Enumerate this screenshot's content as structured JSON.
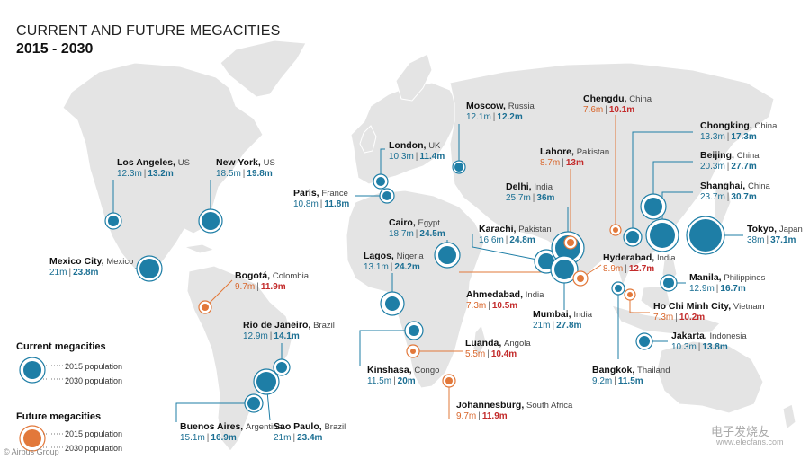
{
  "title": "CURRENT AND FUTURE MEGACITIES",
  "subtitle": "2015 - 2030",
  "legend": {
    "current_heading": "Current megacities",
    "future_heading": "Future megacities",
    "pop_2015": "2015 population",
    "pop_2030": "2030 population"
  },
  "credit": "© Airbus Group",
  "watermark": "电子发烧友",
  "watermark_url": "www.elecfans.com",
  "colors": {
    "current": "#1e7ea6",
    "future": "#e2783a",
    "value_2030_future": "#c32b2b",
    "land": "#e4e4e4"
  },
  "cities": [
    {
      "name": "Los Angeles",
      "country": "US",
      "v2015": "12.3m",
      "v2030": "13.2m",
      "type": "current"
    },
    {
      "name": "New York",
      "country": "US",
      "v2015": "18.5m",
      "v2030": "19.8m",
      "type": "current"
    },
    {
      "name": "Mexico City",
      "country": "Mexico",
      "v2015": "21m",
      "v2030": "23.8m",
      "type": "current"
    },
    {
      "name": "Bogotá",
      "country": "Colombia",
      "v2015": "9.7m",
      "v2030": "11.9m",
      "type": "future"
    },
    {
      "name": "Rio de Janeiro",
      "country": "Brazil",
      "v2015": "12.9m",
      "v2030": "14.1m",
      "type": "current"
    },
    {
      "name": "Buenos Aires",
      "country": "Argentina",
      "v2015": "15.1m",
      "v2030": "16.9m",
      "type": "current"
    },
    {
      "name": "Sao Paulo",
      "country": "Brazil",
      "v2015": "21m",
      "v2030": "23.4m",
      "type": "current"
    },
    {
      "name": "London",
      "country": "UK",
      "v2015": "10.3m",
      "v2030": "11.4m",
      "type": "current"
    },
    {
      "name": "Paris",
      "country": "France",
      "v2015": "10.8m",
      "v2030": "11.8m",
      "type": "current"
    },
    {
      "name": "Moscow",
      "country": "Russia",
      "v2015": "12.1m",
      "v2030": "12.2m",
      "type": "current"
    },
    {
      "name": "Cairo",
      "country": "Egypt",
      "v2015": "18.7m",
      "v2030": "24.5m",
      "type": "current"
    },
    {
      "name": "Lagos",
      "country": "Nigeria",
      "v2015": "13.1m",
      "v2030": "24.2m",
      "type": "current"
    },
    {
      "name": "Kinshasa",
      "country": "Congo",
      "v2015": "11.5m",
      "v2030": "20m",
      "type": "current"
    },
    {
      "name": "Luanda",
      "country": "Angola",
      "v2015": "5.5m",
      "v2030": "10.4m",
      "type": "future"
    },
    {
      "name": "Johannesburg",
      "country": "South Africa",
      "v2015": "9.7m",
      "v2030": "11.9m",
      "type": "future"
    },
    {
      "name": "Karachi",
      "country": "Pakistan",
      "v2015": "16.6m",
      "v2030": "24.8m",
      "type": "current"
    },
    {
      "name": "Delhi",
      "country": "India",
      "v2015": "25.7m",
      "v2030": "36m",
      "type": "current"
    },
    {
      "name": "Lahore",
      "country": "Pakistan",
      "v2015": "8.7m",
      "v2030": "13m",
      "type": "future"
    },
    {
      "name": "Ahmedabad",
      "country": "India",
      "v2015": "7.3m",
      "v2030": "10.5m",
      "type": "future"
    },
    {
      "name": "Mumbai",
      "country": "India",
      "v2015": "21m",
      "v2030": "27.8m",
      "type": "current"
    },
    {
      "name": "Hyderabad",
      "country": "India",
      "v2015": "8.9m",
      "v2030": "12.7m",
      "type": "future"
    },
    {
      "name": "Chengdu",
      "country": "China",
      "v2015": "7.6m",
      "v2030": "10.1m",
      "type": "future"
    },
    {
      "name": "Chongking",
      "country": "China",
      "v2015": "13.3m",
      "v2030": "17.3m",
      "type": "current"
    },
    {
      "name": "Beijing",
      "country": "China",
      "v2015": "20.3m",
      "v2030": "27.7m",
      "type": "current"
    },
    {
      "name": "Shanghai",
      "country": "China",
      "v2015": "23.7m",
      "v2030": "30.7m",
      "type": "current"
    },
    {
      "name": "Tokyo",
      "country": "Japan",
      "v2015": "38m",
      "v2030": "37.1m",
      "type": "current"
    },
    {
      "name": "Manila",
      "country": "Philippines",
      "v2015": "12.9m",
      "v2030": "16.7m",
      "type": "current"
    },
    {
      "name": "Ho Chi Minh City",
      "country": "Vietnam",
      "v2015": "7.3m",
      "v2030": "10.2m",
      "type": "future"
    },
    {
      "name": "Bangkok",
      "country": "Thailand",
      "v2015": "9.2m",
      "v2030": "11.5m",
      "type": "current"
    },
    {
      "name": "Jakarta",
      "country": "Indonesia",
      "v2015": "10.3m",
      "v2030": "13.8m",
      "type": "current"
    }
  ]
}
